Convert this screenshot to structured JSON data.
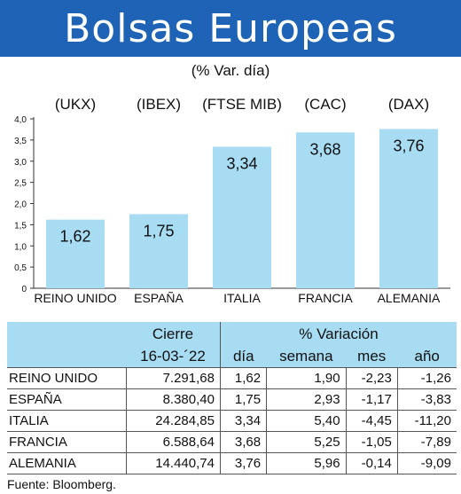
{
  "header": {
    "title": "Bolsas Europeas",
    "subtitle": "(% Var. día)"
  },
  "chart_data": {
    "type": "bar",
    "categories": [
      "REINO UNIDO",
      "ESPAÑA",
      "ITALIA",
      "FRANCIA",
      "ALEMANIA"
    ],
    "index_labels": [
      "(UKX)",
      "(IBEX)",
      "(FTSE MIB)",
      "(CAC)",
      "(DAX)"
    ],
    "values": [
      1.62,
      1.75,
      3.34,
      3.68,
      3.76
    ],
    "value_labels": [
      "1,62",
      "1,75",
      "3,34",
      "3,68",
      "3,76"
    ],
    "ylim": [
      0,
      4.0
    ],
    "yticks": [
      "0",
      "0,5",
      "1,0",
      "1,5",
      "2,0",
      "2,5",
      "3,0",
      "3,5",
      "4,0"
    ],
    "bar_color": "#a7dcf3",
    "grid": false
  },
  "table": {
    "group_headers": [
      "Cierre",
      "% Variación"
    ],
    "date_header": "16-03-´22",
    "column_headers": [
      "día",
      "semana",
      "mes",
      "año"
    ],
    "rows": [
      [
        "REINO UNIDO",
        "7.291,68",
        "1,62",
        "1,90",
        "-2,23",
        "-1,26"
      ],
      [
        "ESPAÑA",
        "8.380,40",
        "1,75",
        "2,93",
        "-1,17",
        "-3,83"
      ],
      [
        "ITALIA",
        "24.284,85",
        "3,34",
        "5,40",
        "-4,45",
        "-11,20"
      ],
      [
        "FRANCIA",
        "6.588,64",
        "3,68",
        "5,25",
        "-1,05",
        "-7,89"
      ],
      [
        "ALEMANIA",
        "14.440,74",
        "3,76",
        "5,96",
        "-0,14",
        "-9,09"
      ]
    ]
  },
  "source": "Fuente: Bloomberg.",
  "colors": {
    "banner": "#1e63b5",
    "header_fill": "#a7dcf3"
  }
}
